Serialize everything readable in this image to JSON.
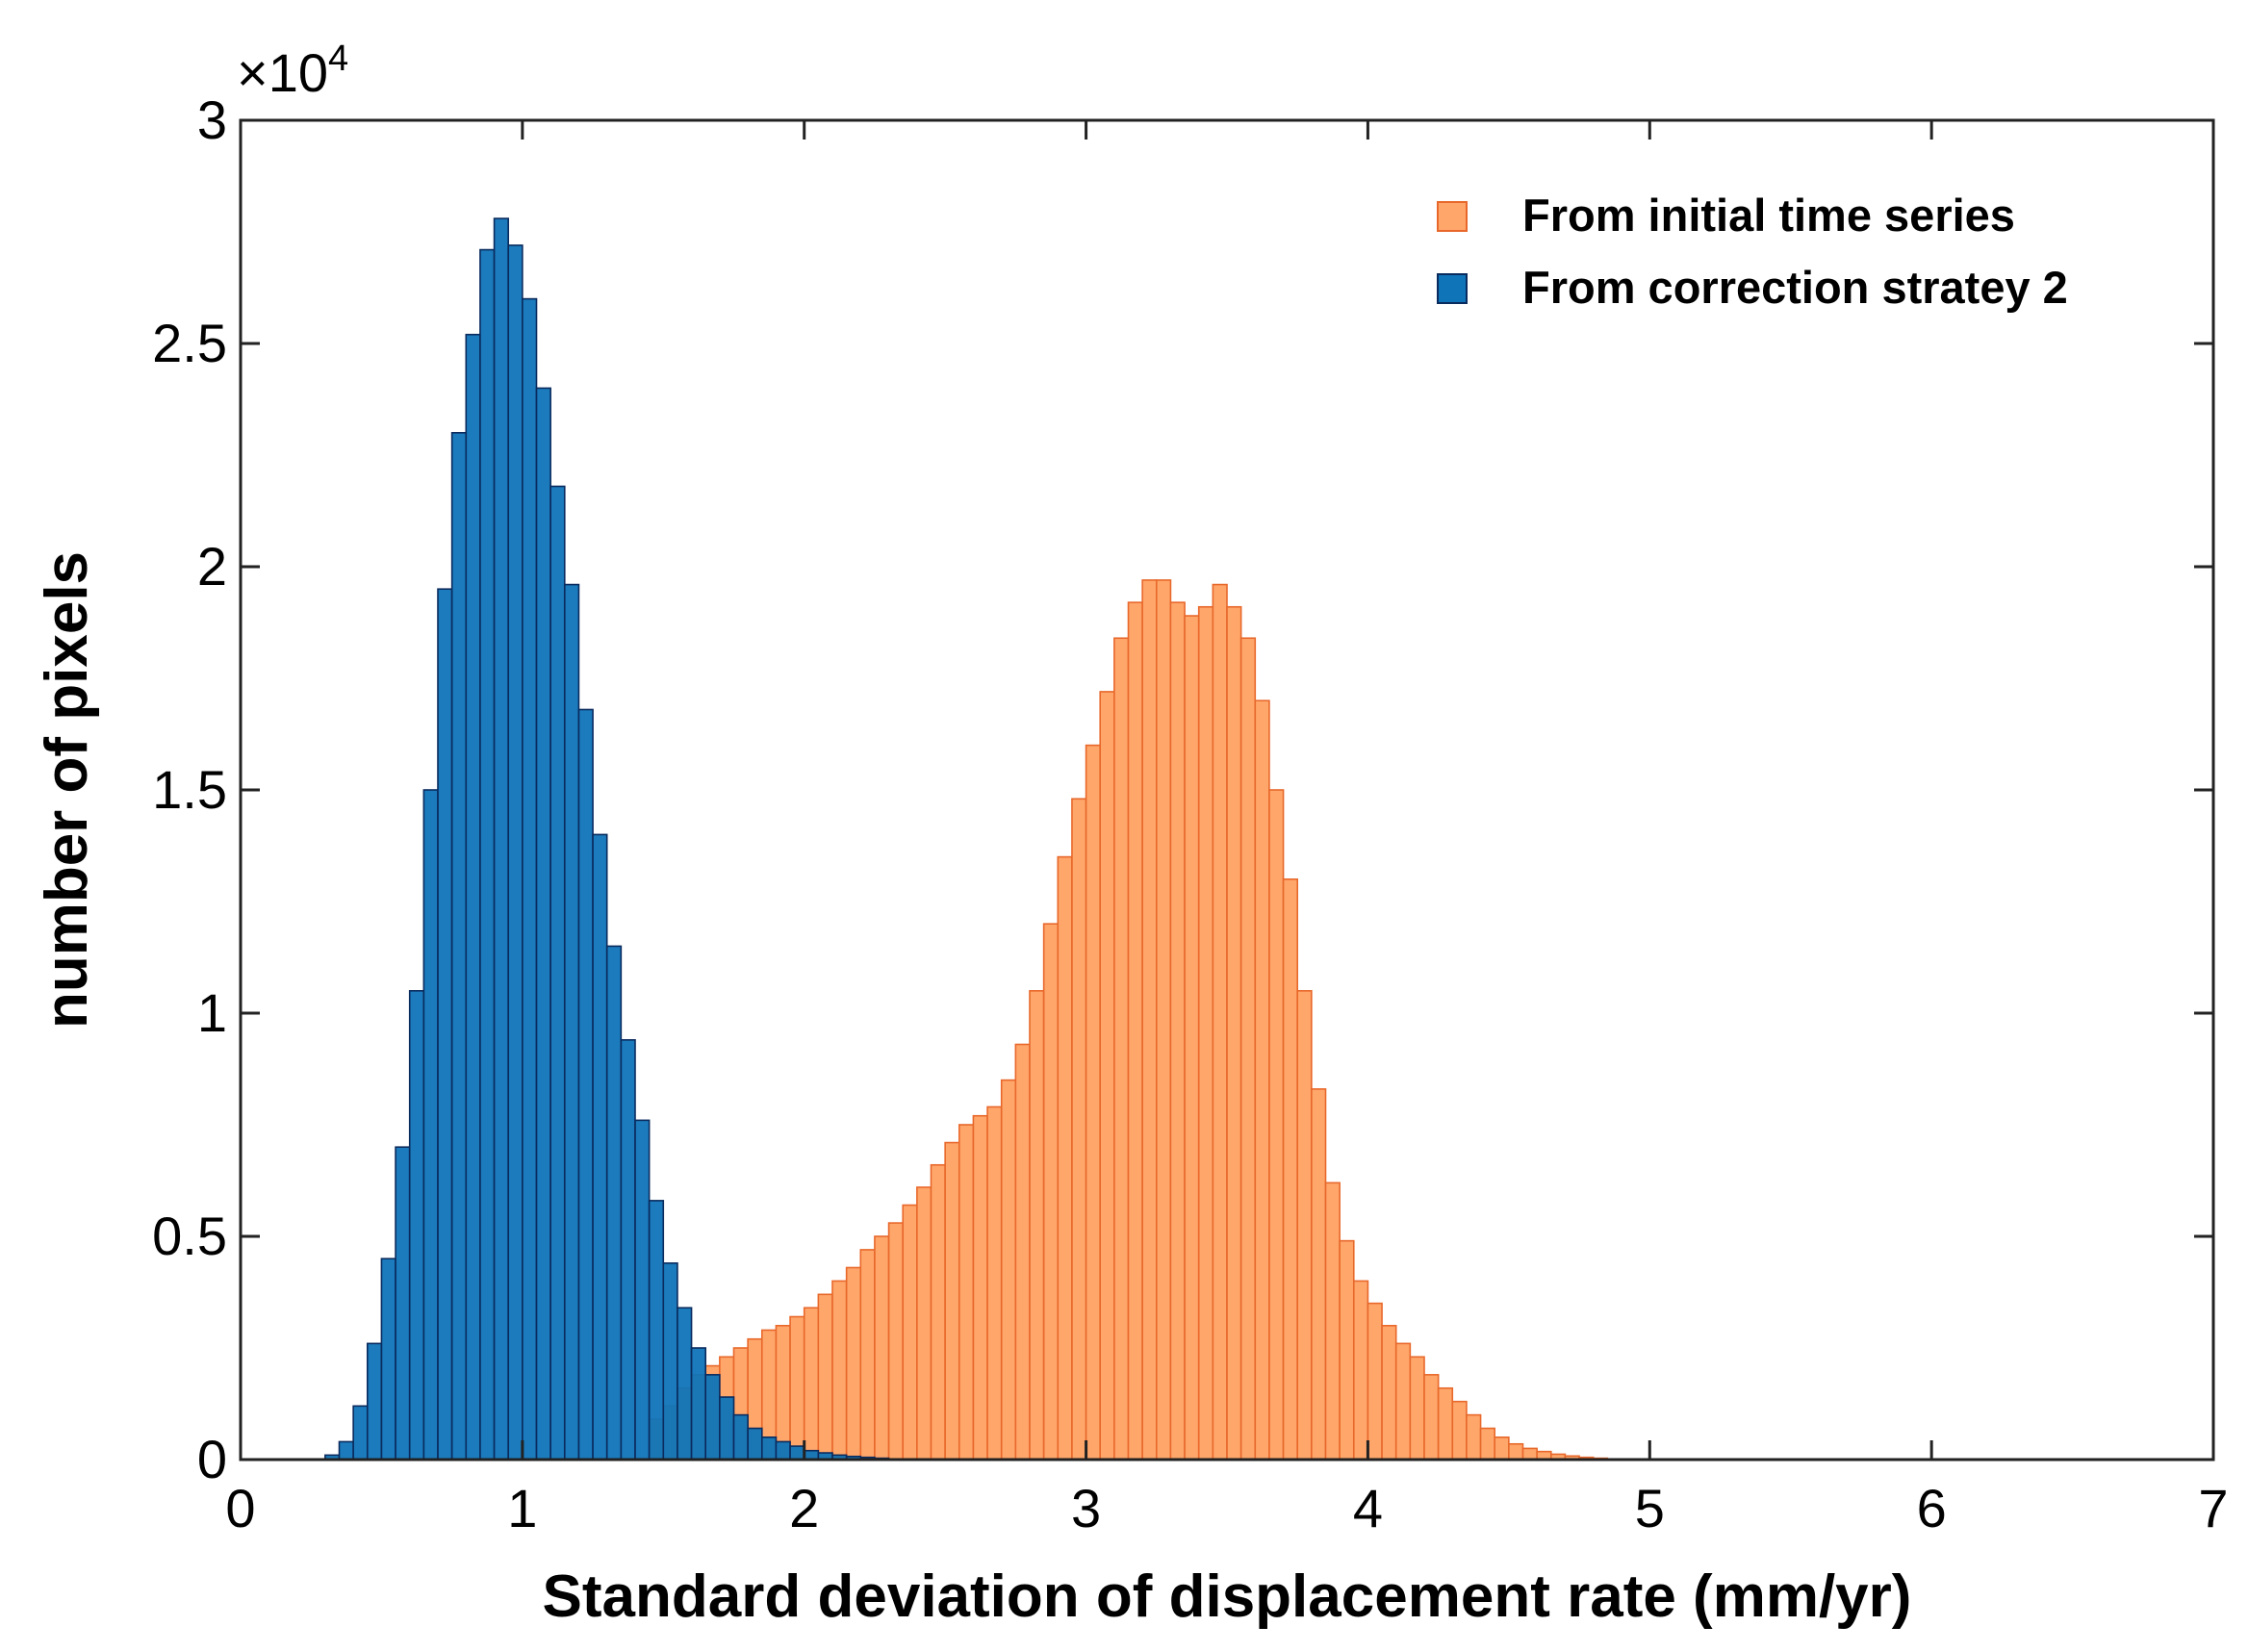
{
  "chart_data": {
    "type": "bar",
    "subtype": "overlaid-histogram",
    "xlabel": "Standard deviation of displacement rate (mm/yr)",
    "ylabel": "number of pixels",
    "xlim": [
      0,
      7
    ],
    "ylim": [
      0,
      3
    ],
    "y_multiplier_label": "×10",
    "y_multiplier_exponent": "4",
    "x_ticks": [
      "0",
      "1",
      "2",
      "3",
      "4",
      "5",
      "6",
      "7"
    ],
    "y_ticks": [
      "0",
      "0.5",
      "1",
      "1.5",
      "2",
      "2.5",
      "3"
    ],
    "grid": false,
    "legend_position": "top-right",
    "series": [
      {
        "name": "From initial time series",
        "color": "#FFA66B",
        "edge_color": "#E8682B",
        "bin_start": 1.45,
        "bin_width": 0.05,
        "values": [
          0.09,
          0.12,
          0.16,
          0.19,
          0.21,
          0.23,
          0.25,
          0.27,
          0.29,
          0.3,
          0.32,
          0.34,
          0.37,
          0.4,
          0.43,
          0.47,
          0.5,
          0.53,
          0.57,
          0.61,
          0.66,
          0.71,
          0.75,
          0.77,
          0.79,
          0.85,
          0.93,
          1.05,
          1.2,
          1.35,
          1.48,
          1.6,
          1.72,
          1.84,
          1.92,
          1.97,
          1.97,
          1.92,
          1.89,
          1.91,
          1.96,
          1.91,
          1.84,
          1.7,
          1.5,
          1.3,
          1.05,
          0.83,
          0.62,
          0.49,
          0.4,
          0.35,
          0.3,
          0.26,
          0.23,
          0.19,
          0.16,
          0.13,
          0.1,
          0.07,
          0.05,
          0.035,
          0.025,
          0.018,
          0.012,
          0.008,
          0.005,
          0.003
        ]
      },
      {
        "name": "From correction stratey 2",
        "color": "#0F74B8",
        "edge_color": "#0A2B5E",
        "bin_start": 0.3,
        "bin_width": 0.05,
        "values": [
          0.01,
          0.04,
          0.12,
          0.26,
          0.45,
          0.7,
          1.05,
          1.5,
          1.95,
          2.3,
          2.52,
          2.71,
          2.78,
          2.72,
          2.6,
          2.4,
          2.18,
          1.96,
          1.68,
          1.4,
          1.15,
          0.94,
          0.76,
          0.58,
          0.44,
          0.34,
          0.25,
          0.19,
          0.14,
          0.1,
          0.07,
          0.05,
          0.04,
          0.03,
          0.02,
          0.015,
          0.01,
          0.007,
          0.005,
          0.003
        ]
      }
    ]
  }
}
